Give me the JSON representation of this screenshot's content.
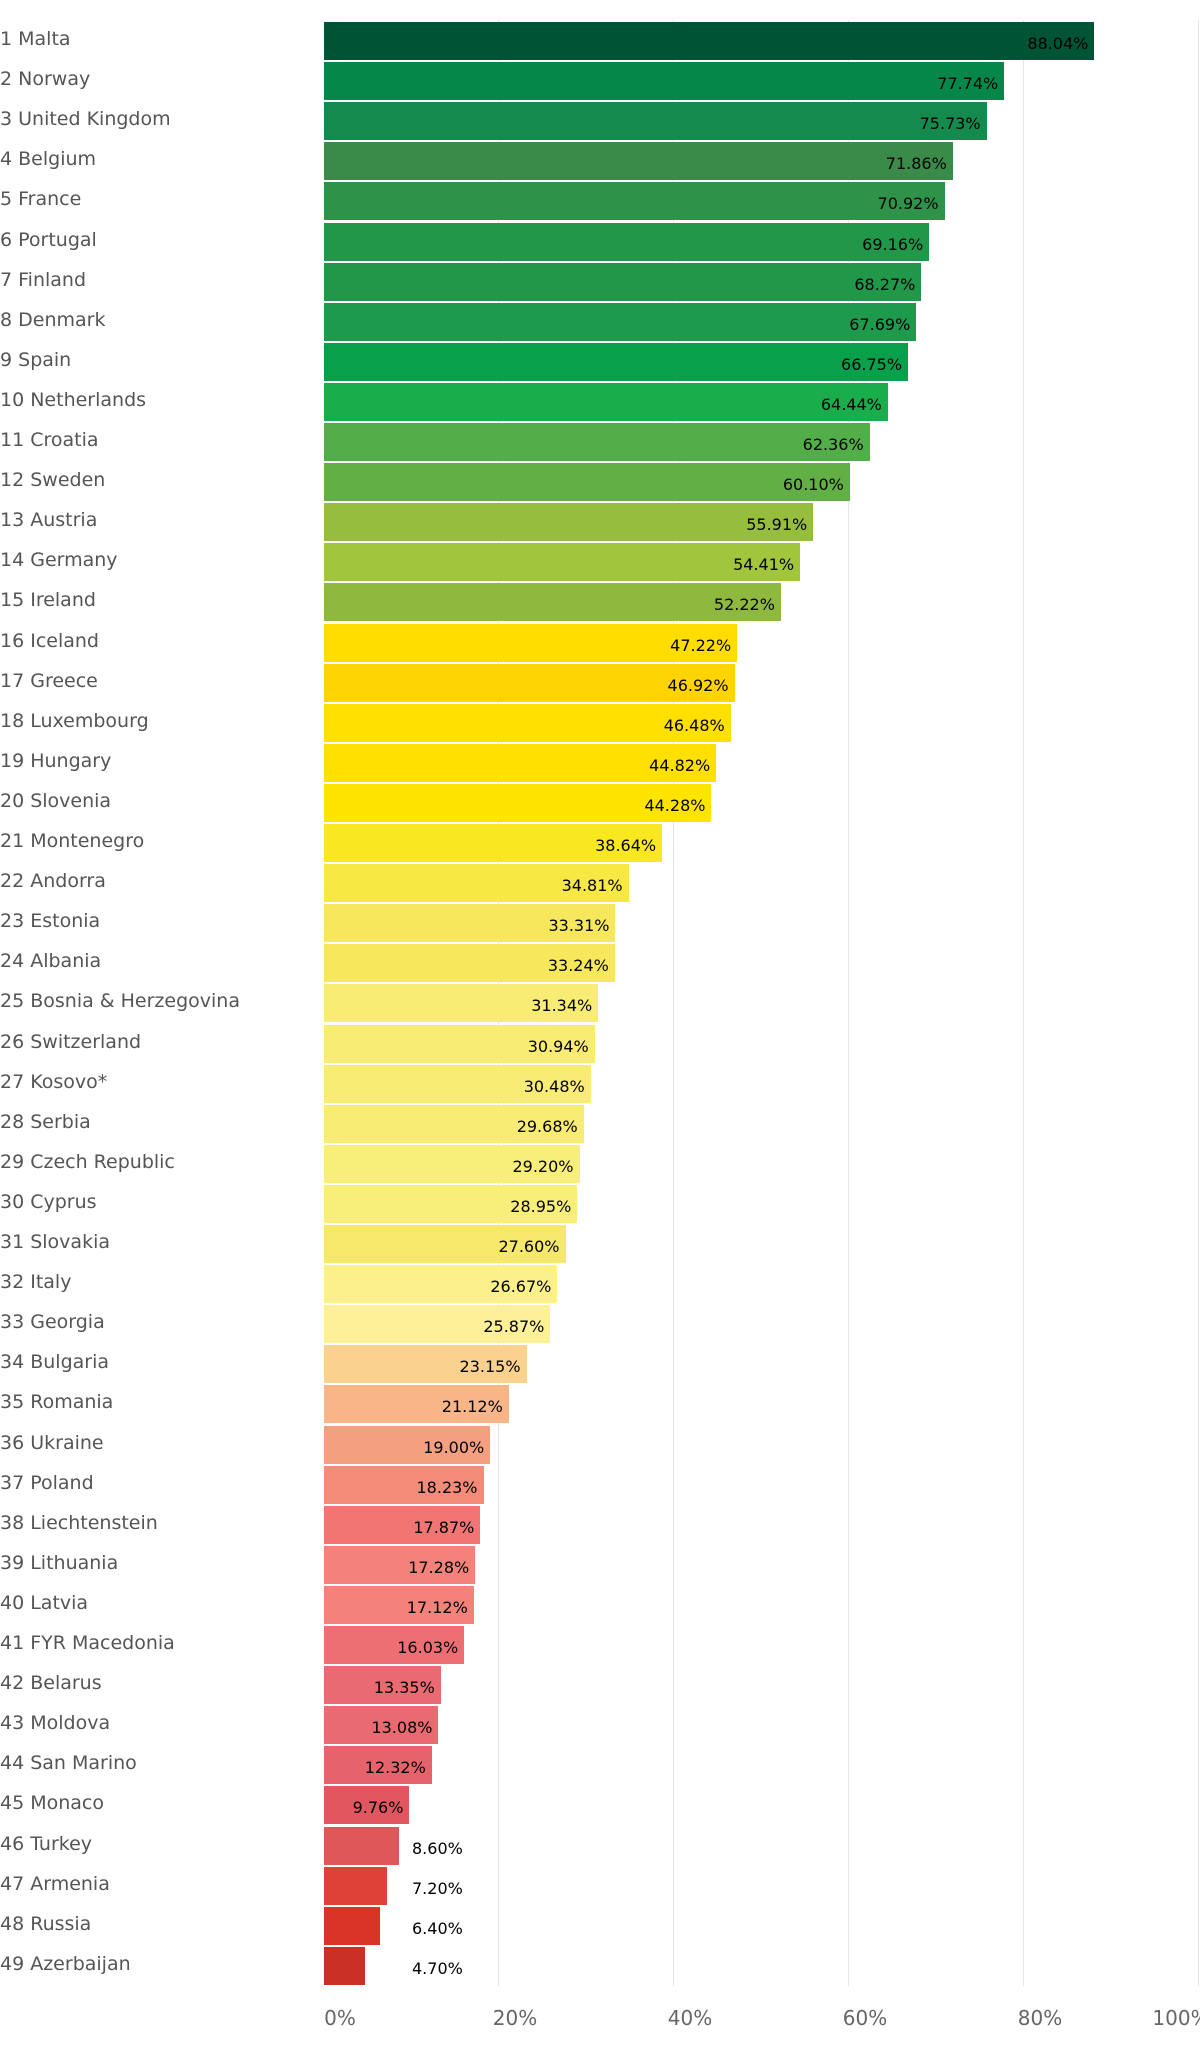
{
  "chart_data": {
    "type": "bar",
    "orientation": "horizontal",
    "title": "",
    "xlabel": "",
    "ylabel": "",
    "xlim": [
      0,
      100
    ],
    "x_ticks": [
      "0%",
      "20%",
      "40%",
      "60%",
      "80%",
      "100%"
    ],
    "grid": true,
    "categories": [
      "1 Malta",
      "2 Norway",
      "3 United Kingdom",
      "4 Belgium",
      "5 France",
      "6 Portugal",
      "7 Finland",
      "8 Denmark",
      "9 Spain",
      "10 Netherlands",
      "11 Croatia",
      "12 Sweden",
      "13 Austria",
      "14 Germany",
      "15 Ireland",
      "16 Iceland",
      "17 Greece",
      "18 Luxembourg",
      "19 Hungary",
      "20 Slovenia",
      "21 Montenegro",
      "22 Andorra",
      "23 Estonia",
      "24 Albania",
      "25 Bosnia & Herzegovina",
      "26 Switzerland",
      "27 Kosovo*",
      "28 Serbia",
      "29 Czech Republic",
      "30 Cyprus",
      "31 Slovakia",
      "32 Italy",
      "33 Georgia",
      "34 Bulgaria",
      "35 Romania",
      "36 Ukraine",
      "37 Poland",
      "38 Liechtenstein",
      "39 Lithuania",
      "40 Latvia",
      "41 FYR Macedonia",
      "42 Belarus",
      "43 Moldova",
      "44 San Marino",
      "45 Monaco",
      "46 Turkey",
      "47 Armenia",
      "48 Russia",
      "49 Azerbaijan"
    ],
    "values": [
      88.04,
      77.74,
      75.73,
      71.86,
      70.92,
      69.16,
      68.27,
      67.69,
      66.75,
      64.44,
      62.36,
      60.1,
      55.91,
      54.41,
      52.22,
      47.22,
      46.92,
      46.48,
      44.82,
      44.28,
      38.64,
      34.81,
      33.31,
      33.24,
      31.34,
      30.94,
      30.48,
      29.68,
      29.2,
      28.95,
      27.6,
      26.67,
      25.87,
      23.15,
      21.12,
      19.0,
      18.23,
      17.87,
      17.28,
      17.12,
      16.03,
      13.35,
      13.08,
      12.32,
      9.76,
      8.6,
      7.2,
      6.4,
      4.7
    ],
    "data_labels": [
      "88.04%",
      "77.74%",
      "75.73%",
      "71.86%",
      "70.92%",
      "69.16%",
      "68.27%",
      "67.69%",
      "66.75%",
      "64.44%",
      "62.36%",
      "60.10%",
      "55.91%",
      "54.41%",
      "52.22%",
      "47.22%",
      "46.92%",
      "46.48%",
      "44.82%",
      "44.28%",
      "38.64%",
      "34.81%",
      "33.31%",
      "33.24%",
      "31.34%",
      "30.94%",
      "30.48%",
      "29.68%",
      "29.20%",
      "28.95%",
      "27.60%",
      "26.67%",
      "25.87%",
      "23.15%",
      "21.12%",
      "19.00%",
      "18.23%",
      "17.87%",
      "17.28%",
      "17.12%",
      "16.03%",
      "13.35%",
      "13.08%",
      "12.32%",
      "9.76%",
      "8.60%",
      "7.20%",
      "6.40%",
      "4.70%"
    ],
    "colors": [
      "#005436",
      "#06874a",
      "#148a4e",
      "#3a8b4a",
      "#2f9249",
      "#21974a",
      "#21974a",
      "#1d9a4c",
      "#08a04a",
      "#1aad4c",
      "#52ae48",
      "#62af45",
      "#96bd3d",
      "#a2c63b",
      "#8fb83e",
      "#ffdd00",
      "#ffd400",
      "#ffe000",
      "#ffe000",
      "#ffe400",
      "#f9e81f",
      "#f8e843",
      "#f6e85a",
      "#f6e85a",
      "#f8ec74",
      "#f8ec74",
      "#f8ec74",
      "#f8ec74",
      "#f8ee7a",
      "#f8ee7a",
      "#f6e86a",
      "#fbf08a",
      "#fdf099",
      "#fbd18f",
      "#f7b588",
      "#f49f80",
      "#f48a78",
      "#f07573",
      "#f3837a",
      "#f3837a",
      "#ee6f73",
      "#e96a70",
      "#e96a70",
      "#e6636c",
      "#e2575f",
      "#e0575a",
      "#df4138",
      "#da3327",
      "#c93126"
    ]
  }
}
